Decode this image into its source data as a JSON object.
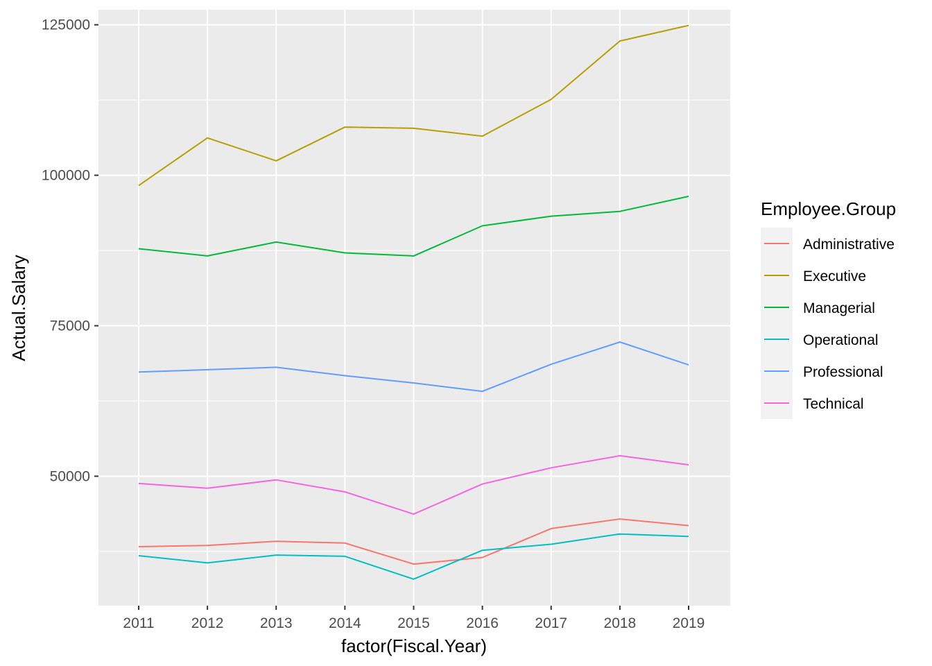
{
  "chart_data": {
    "type": "line",
    "xlabel": "factor(Fiscal.Year)",
    "ylabel": "Actual.Salary",
    "categories": [
      "2011",
      "2012",
      "2013",
      "2014",
      "2015",
      "2016",
      "2017",
      "2018",
      "2019"
    ],
    "yticks": [
      50000,
      75000,
      100000,
      125000
    ],
    "ytick_labels": [
      "50000",
      "75000",
      "100000",
      "125000"
    ],
    "ylim": [
      28500,
      127500
    ],
    "grid": true,
    "panel_background": "#ebebeb",
    "legend": {
      "title": "Employee.Group",
      "position": "right"
    },
    "series": [
      {
        "name": "Administrative",
        "color": "#f8766d",
        "values": [
          38300,
          38500,
          39200,
          38900,
          35400,
          36500,
          41300,
          42900,
          41800
        ]
      },
      {
        "name": "Executive",
        "color": "#b79f00",
        "values": [
          98300,
          106200,
          102400,
          108000,
          107800,
          106500,
          112600,
          122300,
          124900
        ]
      },
      {
        "name": "Managerial",
        "color": "#00ba38",
        "values": [
          87800,
          86600,
          88900,
          87100,
          86600,
          91600,
          93200,
          94000,
          96500
        ]
      },
      {
        "name": "Operational",
        "color": "#00bfc4",
        "values": [
          36800,
          35600,
          36900,
          36700,
          32900,
          37700,
          38700,
          40400,
          40000
        ]
      },
      {
        "name": "Professional",
        "color": "#619cff",
        "values": [
          67300,
          67700,
          68100,
          66700,
          65500,
          64100,
          68600,
          72300,
          68500
        ]
      },
      {
        "name": "Technical",
        "color": "#f564e3",
        "values": [
          48800,
          48000,
          49400,
          47400,
          43700,
          48700,
          51400,
          53400,
          51900
        ]
      }
    ]
  }
}
